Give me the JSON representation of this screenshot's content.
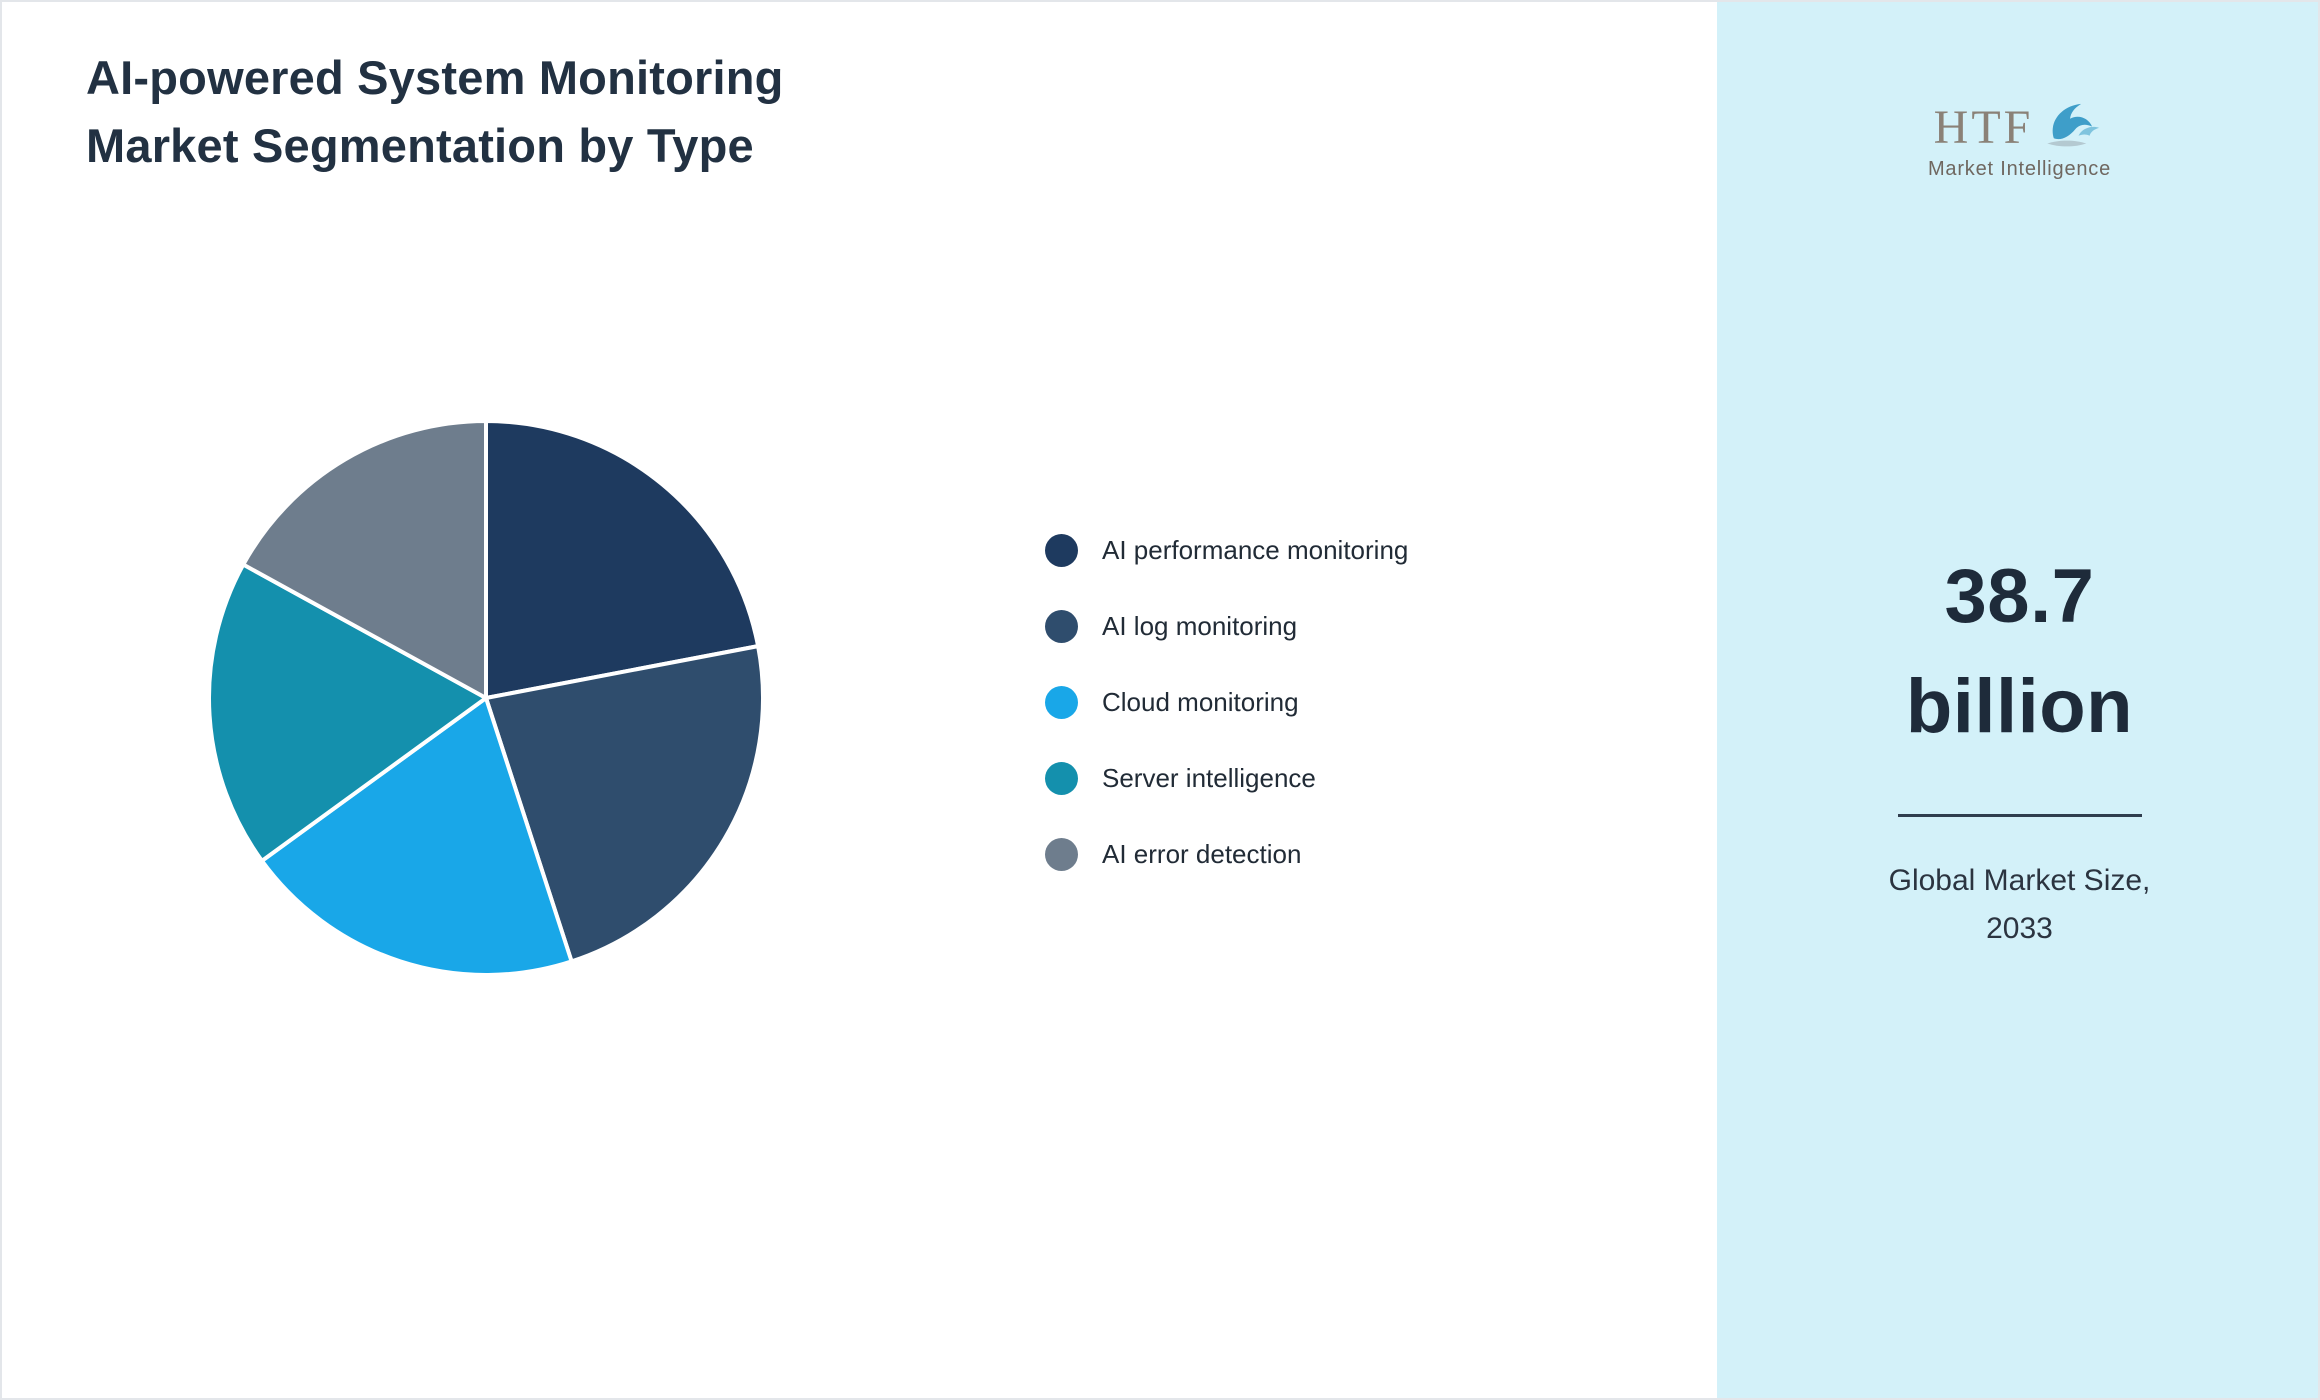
{
  "page": {
    "title_line1": "AI-powered System Monitoring",
    "title_line2": "Market Segmentation by Type"
  },
  "chart_data": {
    "type": "pie",
    "title": "AI-powered System Monitoring Market Segmentation by Type",
    "categories": [
      "AI performance monitoring",
      "AI log monitoring",
      "Cloud monitoring",
      "Server intelligence",
      "AI error detection"
    ],
    "values": [
      22,
      23,
      20,
      18,
      17
    ],
    "unit": "percent (estimated from slice angles)",
    "colors": [
      "#1e3a5f",
      "#2f4d6d",
      "#19a7e8",
      "#1490ad",
      "#6e7d8d"
    ],
    "start_angle_deg": -90,
    "direction": "clockwise",
    "legend_position": "right",
    "slice_border_color": "#ffffff"
  },
  "sidebar": {
    "background": "#d3f1f9",
    "logo": {
      "text": "HTF",
      "subtext": "Market Intelligence",
      "dolphin_icon_color": "#3e9ec9"
    },
    "market_size": {
      "value_line1": "38.7",
      "value_line2": "billion",
      "caption_line1": "Global Market Size,",
      "caption_line2": "2033"
    }
  }
}
